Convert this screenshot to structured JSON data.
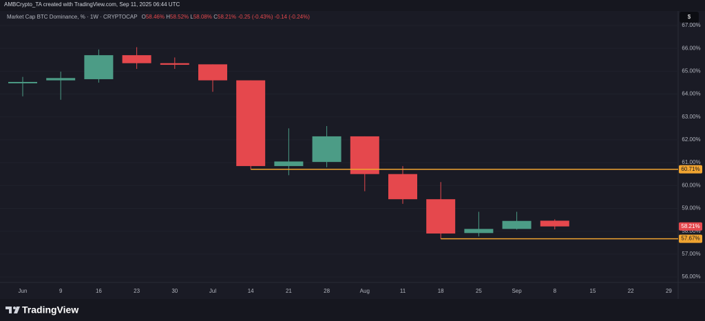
{
  "header": {
    "credit": "AMBCrypto_TA created with TradingView.com, Sep 11, 2025 06:44 UTC",
    "symbol": "Market Cap BTC Dominance, % · 1W · CRYPTOCAP",
    "legend": [
      {
        "label": "O",
        "value": "58.46%"
      },
      {
        "label": "H",
        "value": "58.52%"
      },
      {
        "label": "L",
        "value": "58.08%"
      },
      {
        "label": "C",
        "value": "58.21%"
      }
    ],
    "change": [
      "-0.25 (-0.43%)",
      "-0.14 (-0.24%)"
    ],
    "currency": "$"
  },
  "chart_data": {
    "type": "candlestick",
    "categories": [
      "Jun",
      "9",
      "16",
      "23",
      "30",
      "Jul",
      "14",
      "21",
      "28",
      "Aug",
      "11",
      "18",
      "25",
      "Sep",
      "8",
      "15",
      "22",
      "29"
    ],
    "open": [
      64.47,
      64.6,
      64.65,
      65.7,
      65.35,
      65.3,
      64.6,
      60.85,
      61.03,
      62.15,
      60.5,
      59.4,
      57.92,
      58.1,
      58.46,
      null,
      null,
      null
    ],
    "high": [
      64.75,
      64.98,
      65.95,
      66.05,
      65.6,
      65.3,
      64.6,
      62.5,
      62.6,
      62.15,
      60.85,
      60.15,
      58.85,
      58.85,
      58.52,
      null,
      null,
      null
    ],
    "low": [
      63.9,
      63.75,
      64.5,
      65.1,
      65.1,
      64.1,
      60.71,
      60.45,
      60.8,
      59.75,
      59.2,
      57.67,
      57.77,
      58.07,
      58.08,
      null,
      null,
      null
    ],
    "close": [
      64.53,
      64.7,
      65.7,
      65.35,
      65.28,
      64.6,
      60.85,
      61.05,
      62.15,
      60.5,
      59.4,
      57.9,
      58.1,
      58.45,
      58.21,
      null,
      null,
      null
    ],
    "up_color": "#4c9c86",
    "down_color": "#e5484d",
    "ylim": [
      55.76,
      67.21
    ],
    "yticks": [
      {
        "value": 56,
        "label": "56.00%"
      },
      {
        "value": 57,
        "label": "57.00%"
      },
      {
        "value": 58,
        "label": "58.00%"
      },
      {
        "value": 59,
        "label": "59.00%"
      },
      {
        "value": 60,
        "label": "60.00%"
      },
      {
        "value": 61,
        "label": "61.00%"
      },
      {
        "value": 62,
        "label": "62.00%"
      },
      {
        "value": 63,
        "label": "63.00%"
      },
      {
        "value": 64,
        "label": "64.00%"
      },
      {
        "value": 65,
        "label": "65.00%"
      },
      {
        "value": 66,
        "label": "66.00%"
      },
      {
        "value": 67,
        "label": "67.00%"
      }
    ],
    "grid": true,
    "price_lines": [
      {
        "value": 60.71,
        "label": "60.71%",
        "color": "#f0a431"
      },
      {
        "value": 57.67,
        "label": "57.67%",
        "color": "#f0a431"
      }
    ],
    "last_price": {
      "value": 58.21,
      "label": "58.21%",
      "color": "#e5484d"
    }
  },
  "footer": {
    "brand": "TradingView"
  }
}
